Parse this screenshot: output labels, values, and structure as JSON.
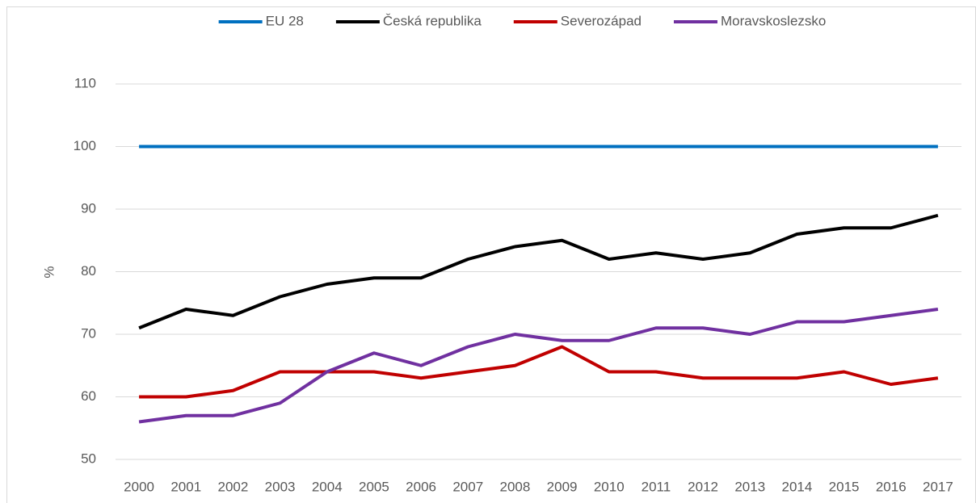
{
  "chart_data": {
    "type": "line",
    "y_label": "%",
    "categories": [
      "2000",
      "2001",
      "2002",
      "2003",
      "2004",
      "2005",
      "2006",
      "2007",
      "2008",
      "2009",
      "2010",
      "2011",
      "2012",
      "2013",
      "2014",
      "2015",
      "2016",
      "2017"
    ],
    "series": [
      {
        "name": "EU 28",
        "color": "#0070c0",
        "values": [
          100,
          100,
          100,
          100,
          100,
          100,
          100,
          100,
          100,
          100,
          100,
          100,
          100,
          100,
          100,
          100,
          100,
          100
        ]
      },
      {
        "name": "Česká republika",
        "color": "#000000",
        "values": [
          71,
          74,
          73,
          76,
          78,
          79,
          79,
          82,
          84,
          85,
          82,
          83,
          82,
          83,
          86,
          87,
          87,
          89
        ]
      },
      {
        "name": "Severozápad",
        "color": "#c00000",
        "values": [
          60,
          60,
          61,
          64,
          64,
          64,
          63,
          64,
          65,
          68,
          64,
          64,
          63,
          63,
          63,
          64,
          62,
          63
        ]
      },
      {
        "name": "Moravskoslezsko",
        "color": "#7030a0",
        "values": [
          56,
          57,
          57,
          59,
          64,
          67,
          65,
          68,
          70,
          69,
          69,
          71,
          71,
          70,
          72,
          72,
          73,
          74
        ]
      }
    ],
    "ylim": [
      50,
      110
    ],
    "yticks": [
      50,
      60,
      70,
      80,
      90,
      100,
      110
    ],
    "grid": true,
    "legend": "top"
  }
}
